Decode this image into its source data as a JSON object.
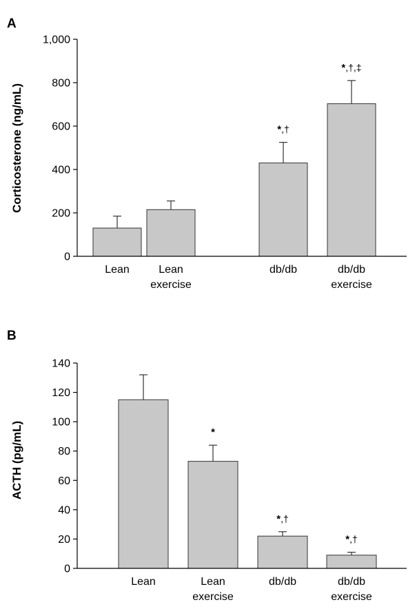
{
  "chart_data": [
    {
      "type": "bar",
      "panel": "A",
      "ylabel": "Corticosterone (ng/mL)",
      "ylim": [
        0,
        1000
      ],
      "yticks": [
        0,
        200,
        400,
        600,
        800,
        1000
      ],
      "ytick_labels": [
        "0",
        "200",
        "400",
        "600",
        "800",
        "1,000"
      ],
      "categories": [
        [
          "Lean"
        ],
        [
          "Lean",
          "exercise"
        ],
        [
          "db/db"
        ],
        [
          "db/db",
          "exercise"
        ]
      ],
      "values": [
        130,
        215,
        430,
        703
      ],
      "errors": [
        55,
        40,
        95,
        107
      ],
      "annotations": [
        "",
        "",
        "*,†",
        "*,†,‡"
      ]
    },
    {
      "type": "bar",
      "panel": "B",
      "ylabel": "ACTH (pg/mL)",
      "ylim": [
        0,
        140
      ],
      "yticks": [
        0,
        20,
        40,
        60,
        80,
        100,
        120,
        140
      ],
      "ytick_labels": [
        "0",
        "20",
        "40",
        "60",
        "80",
        "100",
        "120",
        "140"
      ],
      "categories": [
        [
          "Lean"
        ],
        [
          "Lean",
          "exercise"
        ],
        [
          "db/db"
        ],
        [
          "db/db",
          "exercise"
        ]
      ],
      "values": [
        115,
        73,
        22,
        9
      ],
      "errors": [
        17,
        11,
        3,
        2
      ],
      "annotations": [
        "",
        "*",
        "*,†",
        "*,†"
      ]
    }
  ]
}
